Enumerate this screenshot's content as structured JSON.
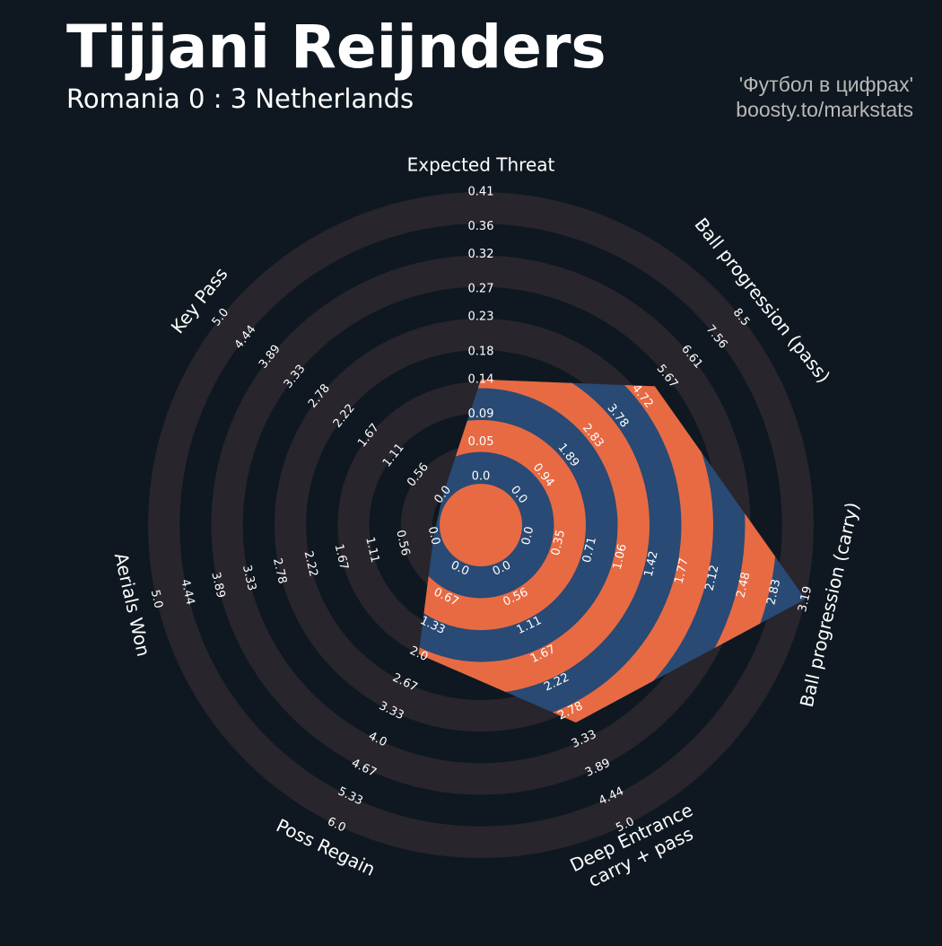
{
  "chart_data": {
    "type": "radar",
    "title": "Tijjani Reijnders",
    "subtitle": "Romania 0 : 3 Netherlands",
    "credits": [
      "'Футбол в цифрах'",
      "boosty.to/markstats"
    ],
    "colors": {
      "background": "#0f1820",
      "rings": "#28252c",
      "radar": "#284a74",
      "radar_rings": "#e86a43"
    },
    "params": [
      {
        "name": [
          "Expected Threat"
        ],
        "value": 0.14,
        "lim": [
          0,
          0.41
        ],
        "ticks": [
          {
            "value": 0,
            "label": "0.0"
          },
          0.05,
          0.09,
          0.14,
          0.18,
          0.23,
          0.27,
          0.32,
          0.36,
          0.41
        ]
      },
      {
        "name": [
          "Ball progression (pass)"
        ],
        "value": 5.2,
        "lim": [
          0,
          8.5
        ],
        "ticks": [
          {
            "value": 0,
            "label": "0.0"
          },
          0.94,
          1.89,
          2.83,
          3.78,
          4.72,
          5.67,
          6.61,
          7.56,
          8.5
        ]
      },
      {
        "name": [
          "Ball progression (carry)"
        ],
        "value": 3.19,
        "lim": [
          0,
          3.19
        ],
        "ticks": [
          {
            "value": 0,
            "label": "0.0"
          },
          0.35,
          0.71,
          1.06,
          1.42,
          1.77,
          2.12,
          2.48,
          2.83,
          3.19
        ]
      },
      {
        "name": [
          "Deep Entrance",
          "carry + pass"
        ],
        "value": 3.0,
        "lim": [
          0,
          5
        ],
        "ticks": [
          {
            "value": 0,
            "label": "0.0"
          },
          0.56,
          1.11,
          1.67,
          2.22,
          2.78,
          3.33,
          3.89,
          4.44,
          {
            "value": 5,
            "label": "5.0"
          }
        ]
      },
      {
        "name": [
          "Poss Regain"
        ],
        "value": 2.0,
        "lim": [
          0,
          6
        ],
        "ticks": [
          {
            "value": 0,
            "label": "0.0"
          },
          0.67,
          1.33,
          {
            "value": 2,
            "label": "2.0"
          },
          2.67,
          3.33,
          {
            "value": 4,
            "label": "4.0"
          },
          4.67,
          5.33,
          {
            "value": 6,
            "label": "6.0"
          }
        ]
      },
      {
        "name": [
          "Aerials Won"
        ],
        "value": 0,
        "lim": [
          0,
          5
        ],
        "ticks": [
          {
            "value": 0,
            "label": "0.0"
          },
          0.56,
          1.11,
          1.67,
          2.22,
          2.78,
          3.33,
          3.89,
          4.44,
          {
            "value": 5,
            "label": "5.0"
          }
        ]
      },
      {
        "name": [
          "Key Pass"
        ],
        "value": 0,
        "lim": [
          0,
          5
        ],
        "ticks": [
          {
            "value": 0,
            "label": "0.0"
          },
          0.56,
          1.11,
          1.67,
          2.22,
          2.78,
          3.33,
          3.89,
          4.44,
          {
            "value": 5,
            "label": "5.0"
          }
        ]
      }
    ]
  }
}
